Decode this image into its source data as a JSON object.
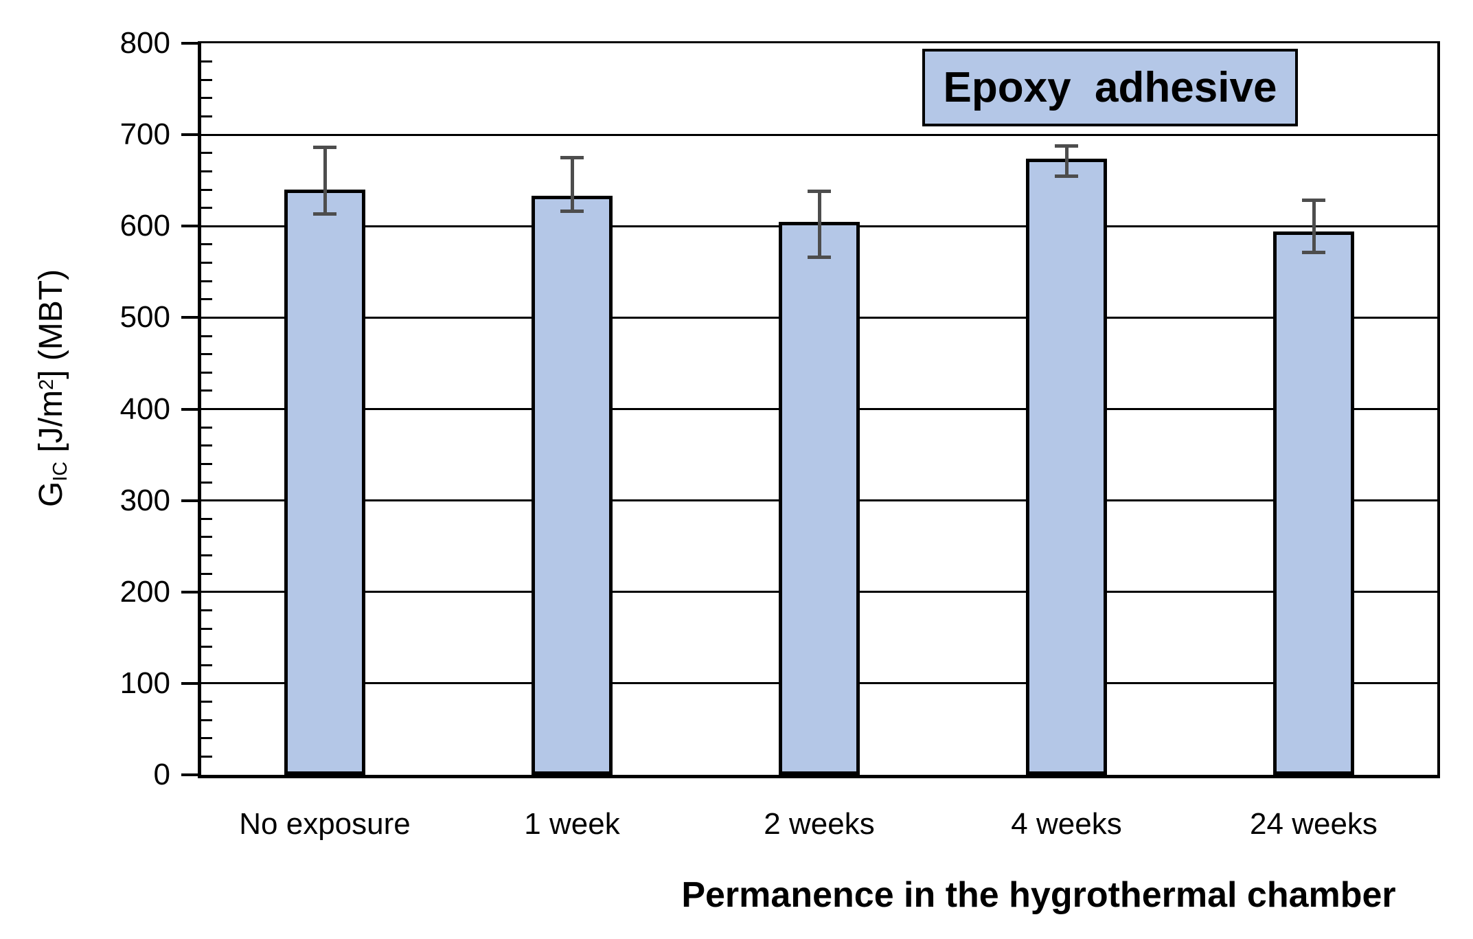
{
  "chart_data": {
    "type": "bar",
    "title": "",
    "xlabel": "Permanence in the hygrothermal chamber",
    "ylabel_parts": {
      "prefix": "G",
      "sub": "IC",
      "mid": " [J/m",
      "sup": "2",
      "suffix": "] (MBT)"
    },
    "legend": {
      "label": "Epoxy  adhesive",
      "position": "top-right"
    },
    "categories": [
      "No exposure",
      "1 week",
      "2 weeks",
      "4 weeks",
      "24 weeks"
    ],
    "values": [
      640,
      633,
      605,
      674,
      594
    ],
    "error_high": [
      686,
      675,
      638,
      688,
      628
    ],
    "error_low": [
      613,
      616,
      566,
      655,
      571
    ],
    "ylim": [
      0,
      800
    ],
    "ytick_step": 100,
    "ytick_labels": [
      "0",
      "100",
      "200",
      "300",
      "400",
      "500",
      "600",
      "700",
      "800"
    ],
    "minor_tick_step": 20,
    "grid": true,
    "colors": {
      "bar_fill": "#B4C7E7",
      "bar_border": "#000000",
      "error_bar": "#4D4D4D",
      "grid_line": "#000000",
      "axis_line": "#000000",
      "legend_fill": "#B4C7E7",
      "legend_border": "#000000",
      "text": "#000000"
    }
  }
}
